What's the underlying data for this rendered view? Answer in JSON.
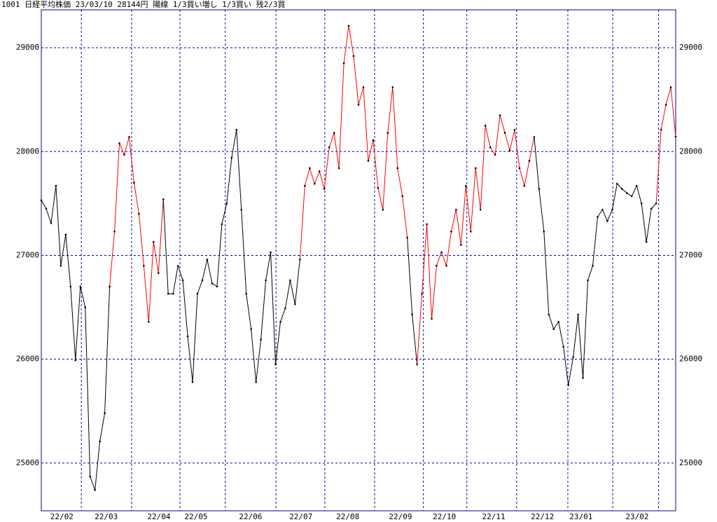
{
  "chart_data": {
    "type": "line",
    "title": "1001 日経平均株価 23/03/10 28144円 陽線 1/3買い増し 1/3買い 残2/3買",
    "values": [
      27530,
      27450,
      27310,
      27670,
      26900,
      27200,
      26700,
      25990,
      26700,
      26500,
      24870,
      24740,
      25210,
      25480,
      26700,
      27230,
      28080,
      27970,
      28140,
      27700,
      27400,
      26900,
      26360,
      27130,
      26830,
      27540,
      26630,
      26630,
      26900,
      26760,
      26220,
      25780,
      26630,
      26760,
      26960,
      26730,
      26700,
      27300,
      27500,
      27940,
      28210,
      27440,
      26630,
      26290,
      25780,
      26190,
      26760,
      27030,
      25950,
      26360,
      26490,
      26760,
      26530,
      26960,
      27670,
      27840,
      27690,
      27810,
      27640,
      28040,
      28180,
      27840,
      28850,
      29210,
      28920,
      28450,
      28620,
      27910,
      28110,
      27650,
      27440,
      28180,
      28620,
      27840,
      27570,
      27170,
      26430,
      25950,
      26630,
      27300,
      26390,
      26900,
      27030,
      26900,
      27230,
      27440,
      27100,
      27670,
      27230,
      27840,
      27440,
      28250,
      28040,
      27970,
      28350,
      28180,
      28010,
      28210,
      27840,
      27670,
      27910,
      28140,
      27640,
      27230,
      26430,
      26290,
      26360,
      26120,
      25750,
      26020,
      26430,
      25820,
      26760,
      26900,
      27370,
      27440,
      27330,
      27440,
      27690,
      27640,
      27600,
      27570,
      27670,
      27500,
      27130,
      27450,
      27500,
      28210,
      28450,
      28620,
      28144
    ],
    "color_runs": [
      {
        "start": 0,
        "color": "#000000"
      },
      {
        "start": 15,
        "color": "#ff0000"
      },
      {
        "start": 26,
        "color": "#000000"
      },
      {
        "start": 54,
        "color": "#ff0000"
      },
      {
        "start": 76,
        "color": "#000000"
      },
      {
        "start": 78,
        "color": "#ff0000"
      },
      {
        "start": 102,
        "color": "#000000"
      },
      {
        "start": 127,
        "color": "#ff0000"
      }
    ],
    "xlim": [
      0,
      130
    ],
    "xticks": [
      {
        "value": 4.2,
        "label": "22/02"
      },
      {
        "value": 13.3,
        "label": "22/03"
      },
      {
        "value": 24.1,
        "label": "22/04"
      },
      {
        "value": 31.7,
        "label": "22/05"
      },
      {
        "value": 42.9,
        "label": "22/06"
      },
      {
        "value": 53.2,
        "label": "22/07"
      },
      {
        "value": 62.8,
        "label": "22/08"
      },
      {
        "value": 73.6,
        "label": "22/09"
      },
      {
        "value": 82.6,
        "label": "22/10"
      },
      {
        "value": 92.7,
        "label": "22/11"
      },
      {
        "value": 102.7,
        "label": "22/12"
      },
      {
        "value": 110.6,
        "label": "23/01"
      },
      {
        "value": 122.1,
        "label": "23/02"
      }
    ],
    "xgrid": [
      8.2,
      18.5,
      28.4,
      37.7,
      48.1,
      58.1,
      68.3,
      78.3,
      87.2,
      97.4,
      107.9,
      117.1,
      126.5
    ],
    "ylim": [
      24540,
      29365
    ],
    "yticks": [
      25000,
      26000,
      27000,
      28000,
      29000
    ],
    "grid": true,
    "grid_color": "#0000c0",
    "frame_color": "#0000a0",
    "point_color": "#000000"
  }
}
